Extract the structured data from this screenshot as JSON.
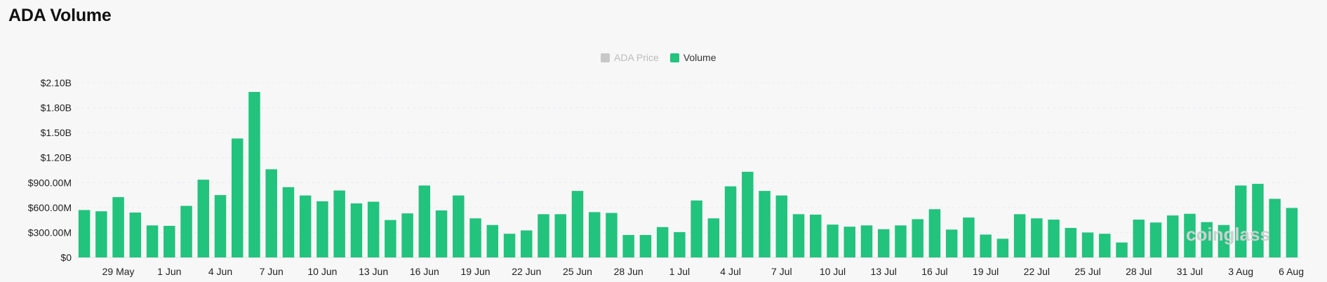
{
  "page": {
    "title": "ADA Volume",
    "watermark": "coinglass"
  },
  "legend": [
    {
      "label": "ADA Price",
      "color": "#c8c8c8",
      "active": false
    },
    {
      "label": "Volume",
      "color": "#22c37d",
      "active": true
    }
  ],
  "chart_data": {
    "type": "bar",
    "title": "ADA Volume",
    "series": [
      {
        "name": "Volume",
        "color": "#22c37d",
        "values": [
          570,
          555,
          725,
          540,
          385,
          380,
          620,
          935,
          750,
          1430,
          1990,
          1060,
          845,
          745,
          675,
          805,
          650,
          670,
          450,
          530,
          865,
          565,
          745,
          470,
          390,
          285,
          325,
          520,
          520,
          800,
          545,
          535,
          270,
          270,
          365,
          305,
          685,
          470,
          855,
          1030,
          800,
          745,
          520,
          515,
          395,
          370,
          385,
          340,
          385,
          460,
          580,
          335,
          480,
          275,
          225,
          520,
          470,
          455,
          355,
          300,
          285,
          180,
          455,
          420,
          505,
          525,
          425,
          390,
          865,
          885,
          705,
          595
        ]
      }
    ],
    "x_tick_labels": [
      "29 May",
      "1 Jun",
      "4 Jun",
      "7 Jun",
      "10 Jun",
      "13 Jun",
      "16 Jun",
      "19 Jun",
      "22 Jun",
      "25 Jun",
      "28 Jun",
      "1 Jul",
      "4 Jul",
      "7 Jul",
      "10 Jul",
      "13 Jul",
      "16 Jul",
      "19 Jul",
      "22 Jul",
      "25 Jul",
      "28 Jul",
      "31 Jul",
      "3 Aug",
      "6 Aug"
    ],
    "y_ticks": [
      "$0",
      "$300.00M",
      "$600.00M",
      "$900.00M",
      "$1.20B",
      "$1.50B",
      "$1.80B",
      "$2.10B"
    ],
    "ylim": [
      0,
      2100
    ],
    "grid": true,
    "legend_position": "top-center"
  }
}
